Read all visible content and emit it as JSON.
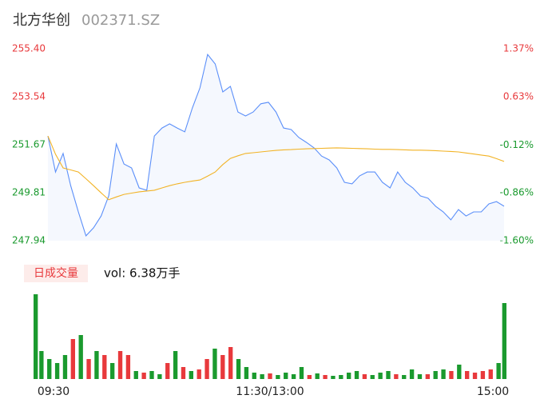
{
  "header": {
    "name": "北方华创",
    "code": "002371.SZ"
  },
  "chart_data": [
    {
      "type": "line",
      "x": [
        0,
        4,
        8,
        12,
        16,
        20,
        24,
        28,
        32,
        36,
        40,
        44,
        48,
        52,
        56,
        60,
        64,
        68,
        72,
        76,
        80,
        84,
        88,
        92,
        96,
        100,
        104,
        108,
        112,
        116,
        120,
        124,
        128,
        132,
        136,
        140,
        144,
        148,
        152,
        156,
        160,
        164,
        168,
        172,
        176,
        180,
        184,
        188,
        192,
        196,
        200,
        204,
        208,
        212,
        216,
        220,
        224,
        228,
        232,
        236,
        240
      ],
      "series": [
        {
          "name": "price",
          "color": "#5b8ff9",
          "values": [
            252.01,
            250.61,
            251.33,
            250.08,
            249.06,
            248.13,
            248.44,
            248.9,
            249.68,
            251.7,
            250.92,
            250.77,
            249.99,
            249.9,
            252.01,
            252.32,
            252.48,
            252.32,
            252.17,
            253.1,
            253.88,
            255.18,
            254.81,
            253.72,
            253.94,
            252.94,
            252.79,
            252.94,
            253.26,
            253.32,
            252.94,
            252.32,
            252.26,
            251.95,
            251.76,
            251.55,
            251.23,
            251.08,
            250.77,
            250.21,
            250.15,
            250.46,
            250.61,
            250.61,
            250.21,
            249.99,
            250.61,
            250.21,
            249.99,
            249.68,
            249.59,
            249.28,
            249.06,
            248.75,
            249.15,
            248.9,
            249.06,
            249.06,
            249.37,
            249.46,
            249.28
          ]
        },
        {
          "name": "average",
          "color": "#f2b325",
          "values": [
            252.01,
            251.3,
            250.77,
            250.69,
            250.61,
            250.35,
            250.08,
            249.8,
            249.53,
            249.64,
            249.74,
            249.79,
            249.84,
            249.87,
            249.9,
            249.99,
            250.08,
            250.15,
            250.21,
            250.26,
            250.3,
            250.45,
            250.61,
            250.9,
            251.14,
            251.24,
            251.33,
            251.36,
            251.39,
            251.42,
            251.45,
            251.47,
            251.48,
            251.5,
            251.51,
            251.52,
            251.53,
            251.54,
            251.55,
            251.54,
            251.53,
            251.52,
            251.51,
            251.5,
            251.49,
            251.49,
            251.48,
            251.47,
            251.46,
            251.46,
            251.45,
            251.44,
            251.42,
            251.41,
            251.39,
            251.35,
            251.31,
            251.27,
            251.23,
            251.13,
            251.02
          ]
        }
      ],
      "xlim": [
        0,
        240
      ],
      "ylim": [
        247.94,
        255.4
      ],
      "yticks": [
        {
          "value": 255.4,
          "label": "255.40"
        },
        253.54,
        251.67,
        249.81,
        247.94
      ],
      "y2lim": [
        -1.6,
        1.37
      ],
      "y2ticks": [
        {
          "value": 1.37,
          "label": "1.37%"
        },
        {
          "value": 0.63,
          "label": "0.63%"
        },
        {
          "value": -0.12,
          "label": "-0.12%"
        },
        {
          "value": -0.86,
          "label": "-0.86%"
        },
        {
          "value": -1.6,
          "label": "-1.60%"
        }
      ]
    },
    {
      "type": "bar",
      "legend": "日成交量",
      "annotation": "vol: 6.38万手",
      "x": [
        0,
        4,
        8,
        12,
        16,
        20,
        24,
        28,
        32,
        36,
        40,
        44,
        48,
        52,
        56,
        60,
        64,
        68,
        72,
        76,
        80,
        84,
        88,
        92,
        96,
        100,
        104,
        108,
        112,
        116,
        120,
        124,
        128,
        132,
        136,
        140,
        144,
        148,
        152,
        156,
        160,
        164,
        168,
        172,
        176,
        180,
        184,
        188,
        192,
        196,
        200,
        204,
        208,
        212,
        216,
        220,
        224,
        228,
        232,
        236,
        240
      ],
      "values": [
        106,
        35,
        25,
        20,
        30,
        50,
        55,
        25,
        35,
        30,
        20,
        35,
        30,
        10,
        8,
        10,
        6,
        20,
        35,
        15,
        10,
        12,
        25,
        38,
        30,
        40,
        25,
        15,
        8,
        6,
        7,
        5,
        8,
        6,
        15,
        5,
        7,
        5,
        4,
        5,
        8,
        10,
        6,
        5,
        8,
        10,
        6,
        5,
        12,
        6,
        6,
        10,
        12,
        10,
        18,
        10,
        8,
        10,
        12,
        20,
        95
      ],
      "colors": [
        "#1a9a2e",
        "#1a9a2e",
        "#1a9a2e",
        "#1a9a2e",
        "#1a9a2e",
        "#e8393c",
        "#1a9a2e",
        "#e8393c",
        "#1a9a2e",
        "#e8393c",
        "#1a9a2e",
        "#e8393c",
        "#e8393c",
        "#1a9a2e",
        "#e8393c",
        "#1a9a2e",
        "#1a9a2e",
        "#e8393c",
        "#1a9a2e",
        "#e8393c",
        "#1a9a2e",
        "#e8393c",
        "#e8393c",
        "#1a9a2e",
        "#e8393c",
        "#e8393c",
        "#1a9a2e",
        "#1a9a2e",
        "#1a9a2e",
        "#1a9a2e",
        "#e8393c",
        "#1a9a2e",
        "#1a9a2e",
        "#1a9a2e",
        "#1a9a2e",
        "#e8393c",
        "#1a9a2e",
        "#e8393c",
        "#1a9a2e",
        "#1a9a2e",
        "#1a9a2e",
        "#1a9a2e",
        "#e8393c",
        "#1a9a2e",
        "#1a9a2e",
        "#1a9a2e",
        "#e8393c",
        "#1a9a2e",
        "#1a9a2e",
        "#1a9a2e",
        "#e8393c",
        "#1a9a2e",
        "#1a9a2e",
        "#e8393c",
        "#1a9a2e",
        "#e8393c",
        "#e8393c",
        "#e8393c",
        "#e8393c",
        "#1a9a2e",
        "#1a9a2e"
      ],
      "xlim": [
        0,
        240
      ],
      "ylim": [
        0,
        106
      ],
      "xticks": [
        {
          "value": 0,
          "label": "09:30"
        },
        {
          "value": 120,
          "label": "11:30/13:00"
        },
        {
          "value": 240,
          "label": "15:00"
        }
      ]
    }
  ]
}
